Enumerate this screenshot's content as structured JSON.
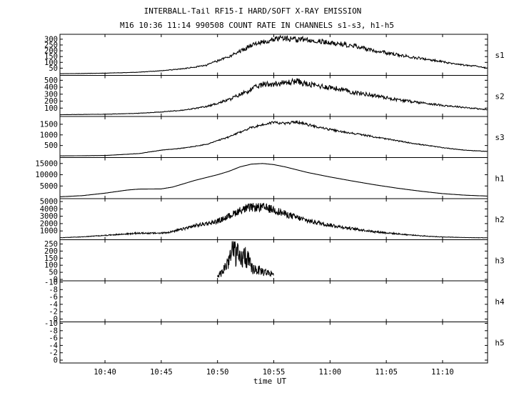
{
  "title": "INTERBALL-Tail RF15-I HARD/SOFT X-RAY EMISSION",
  "subtitle": "M16  10:36 11:14 990508  COUNT RATE IN CHANNELS s1-s3, h1-h5",
  "chart_data": {
    "type": "line",
    "xlabel": "time UT",
    "x_range": [
      "10:36",
      "11:14"
    ],
    "x_ticks": [
      "10:40",
      "10:45",
      "10:50",
      "10:55",
      "11:00",
      "11:05",
      "11:10"
    ],
    "grid": false,
    "colors": {
      "line": "#000000",
      "background": "#ffffff"
    },
    "panels": [
      {
        "name": "s1",
        "ylim": [
          0,
          330
        ],
        "yticks": [
          50,
          100,
          150,
          200,
          250,
          300
        ],
        "noise": 0.05,
        "points": [
          [
            "10:36",
            2
          ],
          [
            "10:40",
            7
          ],
          [
            "10:43",
            15
          ],
          [
            "10:45",
            28
          ],
          [
            "10:47",
            45
          ],
          [
            "10:49",
            75
          ],
          [
            "10:51",
            150
          ],
          [
            "10:53",
            245
          ],
          [
            "10:55",
            305
          ],
          [
            "10:56",
            310
          ],
          [
            "10:57",
            295
          ],
          [
            "10:58",
            300
          ],
          [
            "11:00",
            270
          ],
          [
            "11:02",
            245
          ],
          [
            "11:04",
            200
          ],
          [
            "11:06",
            165
          ],
          [
            "11:08",
            135
          ],
          [
            "11:10",
            105
          ],
          [
            "11:12",
            75
          ],
          [
            "11:13",
            68
          ],
          [
            "11:14",
            50
          ]
        ]
      },
      {
        "name": "s2",
        "ylim": [
          0,
          550
        ],
        "yticks": [
          100,
          200,
          300,
          400,
          500
        ],
        "noise": 0.06,
        "points": [
          [
            "10:36",
            5
          ],
          [
            "10:40",
            12
          ],
          [
            "10:43",
            25
          ],
          [
            "10:45",
            45
          ],
          [
            "10:47",
            70
          ],
          [
            "10:49",
            120
          ],
          [
            "10:51",
            220
          ],
          [
            "10:53",
            370
          ],
          [
            "10:54",
            440
          ],
          [
            "10:56",
            460
          ],
          [
            "10:57",
            490
          ],
          [
            "10:58",
            440
          ],
          [
            "11:00",
            400
          ],
          [
            "11:02",
            330
          ],
          [
            "11:04",
            280
          ],
          [
            "11:06",
            220
          ],
          [
            "11:08",
            180
          ],
          [
            "11:10",
            140
          ],
          [
            "11:12",
            110
          ],
          [
            "11:14",
            75
          ]
        ]
      },
      {
        "name": "s3",
        "ylim": [
          0,
          1800
        ],
        "yticks": [
          500,
          1000,
          1500
        ],
        "noise": 0.025,
        "points": [
          [
            "10:36",
            10
          ],
          [
            "10:40",
            30
          ],
          [
            "10:43",
            120
          ],
          [
            "10:45",
            280
          ],
          [
            "10:47",
            380
          ],
          [
            "10:49",
            550
          ],
          [
            "10:51",
            900
          ],
          [
            "10:53",
            1350
          ],
          [
            "10:55",
            1600
          ],
          [
            "10:56",
            1530
          ],
          [
            "10:57",
            1620
          ],
          [
            "10:58",
            1480
          ],
          [
            "11:00",
            1250
          ],
          [
            "11:01",
            1150
          ],
          [
            "11:02",
            1080
          ],
          [
            "11:04",
            900
          ],
          [
            "11:06",
            720
          ],
          [
            "11:08",
            550
          ],
          [
            "11:10",
            400
          ],
          [
            "11:12",
            280
          ],
          [
            "11:14",
            220
          ]
        ]
      },
      {
        "name": "h1",
        "ylim": [
          0,
          17000
        ],
        "yticks": [
          5000,
          10000,
          15000
        ],
        "noise": 0.0,
        "points": [
          [
            "10:36",
            200
          ],
          [
            "10:38",
            700
          ],
          [
            "10:40",
            1800
          ],
          [
            "10:42",
            3200
          ],
          [
            "10:43",
            3600
          ],
          [
            "10:45",
            3700
          ],
          [
            "10:46",
            4500
          ],
          [
            "10:48",
            7500
          ],
          [
            "10:50",
            10000
          ],
          [
            "10:51",
            11500
          ],
          [
            "10:52",
            13500
          ],
          [
            "10:53",
            14700
          ],
          [
            "10:54",
            15000
          ],
          [
            "10:55",
            14500
          ],
          [
            "10:56",
            13500
          ],
          [
            "10:58",
            11000
          ],
          [
            "11:00",
            9000
          ],
          [
            "11:02",
            7200
          ],
          [
            "11:04",
            5500
          ],
          [
            "11:06",
            4000
          ],
          [
            "11:08",
            2700
          ],
          [
            "11:10",
            1600
          ],
          [
            "11:12",
            900
          ],
          [
            "11:14",
            500
          ]
        ]
      },
      {
        "name": "h2",
        "ylim": [
          0,
          5200
        ],
        "yticks": [
          1000,
          2000,
          3000,
          4000,
          5000
        ],
        "noise": 0.09,
        "points": [
          [
            "10:36",
            80
          ],
          [
            "10:38",
            200
          ],
          [
            "10:40",
            400
          ],
          [
            "10:42",
            600
          ],
          [
            "10:43",
            700
          ],
          [
            "10:45",
            700
          ],
          [
            "10:46",
            900
          ],
          [
            "10:48",
            1700
          ],
          [
            "10:50",
            2300
          ],
          [
            "10:51",
            3000
          ],
          [
            "10:52",
            3800
          ],
          [
            "10:53",
            4200
          ],
          [
            "10:54",
            4200
          ],
          [
            "10:55",
            3900
          ],
          [
            "10:56",
            3300
          ],
          [
            "10:58",
            2400
          ],
          [
            "11:00",
            1800
          ],
          [
            "11:02",
            1300
          ],
          [
            "11:04",
            900
          ],
          [
            "11:06",
            600
          ],
          [
            "11:08",
            350
          ],
          [
            "11:10",
            180
          ],
          [
            "11:12",
            100
          ],
          [
            "11:14",
            60
          ]
        ]
      },
      {
        "name": "h3",
        "ylim": [
          0,
          270
        ],
        "yticks": [
          0,
          50,
          100,
          150,
          200,
          250
        ],
        "noise": 0.35,
        "segment": [
          "10:50",
          "10:55"
        ],
        "points": [
          [
            "10:50",
            20
          ],
          [
            "10:50",
            60
          ],
          [
            "10:51",
            140
          ],
          [
            "10:51",
            210
          ],
          [
            "10:52",
            130
          ],
          [
            "10:52",
            170
          ],
          [
            "10:53",
            80
          ],
          [
            "10:54",
            55
          ],
          [
            "10:55",
            40
          ]
        ]
      },
      {
        "name": "h4",
        "ylim": [
          0,
          10
        ],
        "yticks": [
          0,
          -2,
          -4,
          -6,
          -8,
          -10
        ],
        "noise": 0.0,
        "points": []
      },
      {
        "name": "h5",
        "ylim": [
          0,
          10
        ],
        "yticks": [
          0,
          -2,
          -4,
          -6,
          -8,
          -10
        ],
        "noise": 0.0,
        "points": []
      }
    ]
  }
}
